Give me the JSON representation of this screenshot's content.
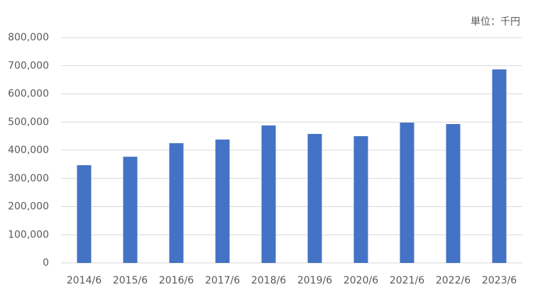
{
  "chart_data": {
    "type": "bar",
    "annotation": "単位：千円",
    "categories": [
      "2014/6",
      "2015/6",
      "2016/6",
      "2017/6",
      "2018/6",
      "2019/6",
      "2020/6",
      "2021/6",
      "2022/6",
      "2023/6"
    ],
    "values": [
      347000,
      377000,
      425000,
      438000,
      488000,
      458000,
      450000,
      498000,
      493000,
      687000
    ],
    "color": "#4472c4",
    "ylim": [
      0,
      800000
    ],
    "yticks": [
      0,
      {
        "value": 100000,
        "label": "100,000"
      },
      {
        "value": 200000,
        "label": "200,000"
      },
      {
        "value": 300000,
        "label": "300,000"
      },
      {
        "value": 400000,
        "label": "400,000"
      },
      {
        "value": 500000,
        "label": "500,000"
      },
      {
        "value": 600000,
        "label": "600,000"
      },
      {
        "value": 700000,
        "label": "700,000"
      },
      {
        "value": 800000,
        "label": "800,000"
      }
    ],
    "grid": true
  }
}
